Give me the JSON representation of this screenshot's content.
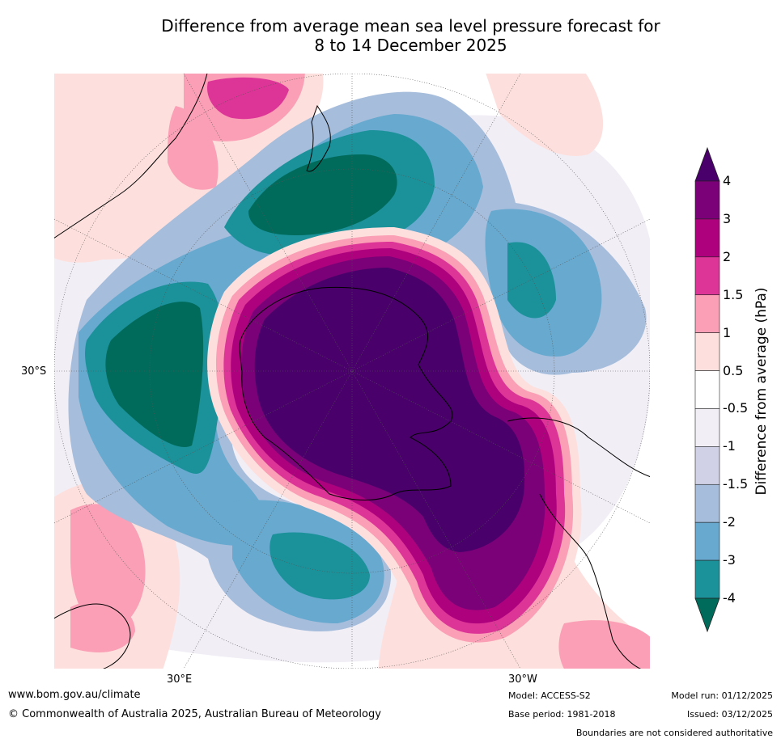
{
  "title": {
    "line1": "Difference from average mean sea level pressure forecast for",
    "line2": "8 to 14 December 2025"
  },
  "map": {
    "projection": "south-polar stereographic",
    "latitude_label": "30°S",
    "longitude_labels": {
      "east": "30°E",
      "west": "30°W"
    },
    "colors": {
      "neg4": "#006b5b",
      "neg3": "#1b919a",
      "neg2": "#67a9cf",
      "neg1_5": "#a6bddb",
      "neg1": "#d0d1e6",
      "neg0_5": "#f1eef6",
      "neutral": "#ffffff",
      "pos0_5": "#fde0dd",
      "pos1": "#fa9fb5",
      "pos1_5": "#dd3497",
      "pos2": "#ae017e",
      "pos3": "#7a0177",
      "pos4": "#49006a",
      "land": "#000000"
    }
  },
  "colorbar": {
    "title": "Difference from average (hPa)",
    "ticks": [
      "4",
      "3",
      "2",
      "1.5",
      "1",
      "0.5",
      "-0.5",
      "-1",
      "-1.5",
      "-2",
      "-3",
      "-4"
    ],
    "bins": [
      "#7a0177",
      "#ae017e",
      "#dd3497",
      "#fa9fb5",
      "#fde0dd",
      "#ffffff",
      "#f1eef6",
      "#d0d1e6",
      "#a6bddb",
      "#67a9cf",
      "#1b919a"
    ],
    "top_extend_color": "#49006a",
    "bottom_extend_color": "#006b5b"
  },
  "footer": {
    "website": "www.bom.gov.au/climate",
    "copyright": "© Commonwealth of Australia 2025, Australian Bureau of Meteorology",
    "model": "Model: ACCESS-S2",
    "base_period": "Base period: 1981-2018",
    "model_run": "Model run: 01/12/2025",
    "issued": "Issued: 03/12/2025",
    "disclaimer": "Boundaries are not considered authoritative"
  }
}
